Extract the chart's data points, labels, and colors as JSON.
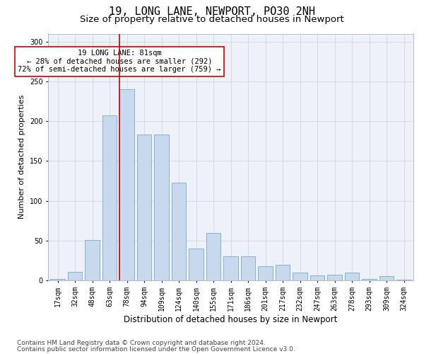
{
  "title1": "19, LONG LANE, NEWPORT, PO30 2NH",
  "title2": "Size of property relative to detached houses in Newport",
  "xlabel": "Distribution of detached houses by size in Newport",
  "ylabel": "Number of detached properties",
  "categories": [
    "17sqm",
    "32sqm",
    "48sqm",
    "63sqm",
    "78sqm",
    "94sqm",
    "109sqm",
    "124sqm",
    "140sqm",
    "155sqm",
    "171sqm",
    "186sqm",
    "201sqm",
    "217sqm",
    "232sqm",
    "247sqm",
    "263sqm",
    "278sqm",
    "293sqm",
    "309sqm",
    "324sqm"
  ],
  "values": [
    2,
    11,
    51,
    207,
    240,
    183,
    183,
    123,
    40,
    60,
    30,
    30,
    18,
    20,
    10,
    6,
    7,
    10,
    2,
    5,
    1
  ],
  "bar_color": "#c8d8ed",
  "bar_edge_color": "#7aaac8",
  "vline_color": "#cc0000",
  "vline_index": 4,
  "annotation_text": "19 LONG LANE: 81sqm\n← 28% of detached houses are smaller (292)\n72% of semi-detached houses are larger (759) →",
  "annotation_box_facecolor": "#ffffff",
  "annotation_box_edgecolor": "#cc0000",
  "ylim": [
    0,
    310
  ],
  "yticks": [
    0,
    50,
    100,
    150,
    200,
    250,
    300
  ],
  "bg_color": "#eef2f8",
  "grid_color": "#c8d0dc",
  "footer1": "Contains HM Land Registry data © Crown copyright and database right 2024.",
  "footer2": "Contains public sector information licensed under the Open Government Licence v3.0.",
  "title1_fontsize": 11,
  "title2_fontsize": 9.5,
  "xlabel_fontsize": 8.5,
  "ylabel_fontsize": 8,
  "tick_fontsize": 7,
  "annot_fontsize": 7.5,
  "footer_fontsize": 6.5
}
